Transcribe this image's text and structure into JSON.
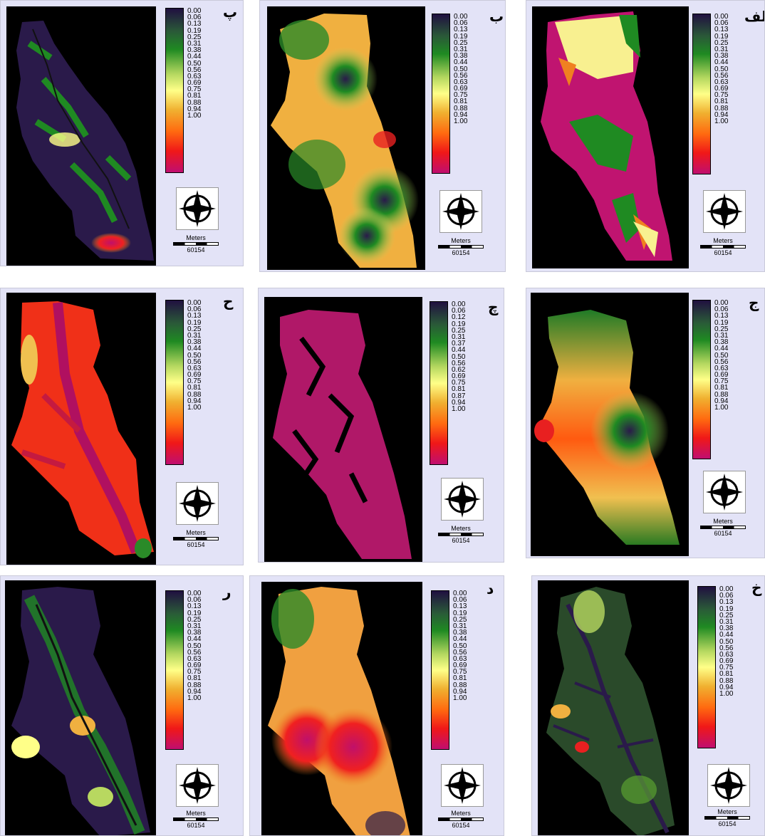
{
  "panels": [
    {
      "id": "p1",
      "letter": "پ",
      "ticks": [
        "0.00",
        "0.06",
        "0.13",
        "0.19",
        "0.25",
        "0.31",
        "0.38",
        "0.44",
        "0.50",
        "0.56",
        "0.63",
        "0.69",
        "0.75",
        "0.81",
        "0.88",
        "0.94",
        "1.00"
      ],
      "unit": "Meters",
      "scale": "60154"
    },
    {
      "id": "p2",
      "letter": "ب",
      "ticks": [
        "0.00",
        "0.06",
        "0.13",
        "0.19",
        "0.25",
        "0.31",
        "0.38",
        "0.44",
        "0.50",
        "0.56",
        "0.63",
        "0.69",
        "0.75",
        "0.81",
        "0.88",
        "0.94",
        "1.00"
      ],
      "unit": "Meters",
      "scale": "60154"
    },
    {
      "id": "p3",
      "letter": "الف",
      "ticks": [
        "0.00",
        "0.06",
        "0.13",
        "0.19",
        "0.25",
        "0.31",
        "0.38",
        "0.44",
        "0.50",
        "0.56",
        "0.63",
        "0.69",
        "0.75",
        "0.81",
        "0.88",
        "0.94",
        "1.00"
      ],
      "unit": "Meters",
      "scale": "60154"
    },
    {
      "id": "p4",
      "letter": "ح",
      "ticks": [
        "0.00",
        "0.06",
        "0.13",
        "0.19",
        "0.25",
        "0.31",
        "0.38",
        "0.44",
        "0.50",
        "0.56",
        "0.63",
        "0.69",
        "0.75",
        "0.81",
        "0.88",
        "0.94",
        "1.00"
      ],
      "unit": "Meters",
      "scale": "60154"
    },
    {
      "id": "p5",
      "letter": "چ",
      "ticks": [
        "0.00",
        "0.06",
        "0.12",
        "0.19",
        "0.25",
        "0.31",
        "0.37",
        "0.44",
        "0.50",
        "0.56",
        "0.62",
        "0.69",
        "0.75",
        "0.81",
        "0.87",
        "0.94",
        "1.00"
      ],
      "unit": "Meters",
      "scale": "60154"
    },
    {
      "id": "p6",
      "letter": "ج",
      "ticks": [
        "0.00",
        "0.06",
        "0.13",
        "0.19",
        "0.25",
        "0.31",
        "0.38",
        "0.44",
        "0.50",
        "0.56",
        "0.63",
        "0.69",
        "0.75",
        "0.81",
        "0.88",
        "0.94",
        "1.00"
      ],
      "unit": "Meters",
      "scale": "60154"
    },
    {
      "id": "p7",
      "letter": "ر",
      "ticks": [
        "0.00",
        "0.06",
        "0.13",
        "0.19",
        "0.25",
        "0.31",
        "0.38",
        "0.44",
        "0.50",
        "0.56",
        "0.63",
        "0.69",
        "0.75",
        "0.81",
        "0.88",
        "0.94",
        "1.00"
      ],
      "unit": "Meters",
      "scale": "60154"
    },
    {
      "id": "p8",
      "letter": "د",
      "ticks": [
        "0.00",
        "0.06",
        "0.13",
        "0.19",
        "0.25",
        "0.31",
        "0.38",
        "0.44",
        "0.50",
        "0.56",
        "0.63",
        "0.69",
        "0.75",
        "0.81",
        "0.88",
        "0.94",
        "1.00"
      ],
      "unit": "Meters",
      "scale": "60154"
    },
    {
      "id": "p9",
      "letter": "خ",
      "ticks": [
        "0.00",
        "0.06",
        "0.13",
        "0.19",
        "0.25",
        "0.31",
        "0.38",
        "0.44",
        "0.50",
        "0.56",
        "0.63",
        "0.69",
        "0.75",
        "0.81",
        "0.88",
        "0.94",
        "1.00"
      ],
      "unit": "Meters",
      "scale": "60154"
    }
  ],
  "colors": {
    "map_background": "#000000",
    "panel_background": "#e3e3f7",
    "low": "#201040",
    "mid": "#ffff88",
    "high": "#c00e70"
  },
  "icons": {
    "north_arrow": "compass-rose-icon"
  }
}
